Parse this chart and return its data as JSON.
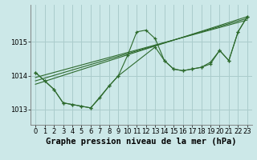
{
  "background_color": "#cce8e8",
  "grid_color": "#aacccc",
  "line_color": "#2d6a2d",
  "title": "Graphe pression niveau de la mer (hPa)",
  "xlim": [
    -0.5,
    23.5
  ],
  "ylim": [
    1012.55,
    1016.1
  ],
  "yticks": [
    1013,
    1014,
    1015
  ],
  "xticks": [
    0,
    1,
    2,
    3,
    4,
    5,
    6,
    7,
    8,
    9,
    10,
    11,
    12,
    13,
    14,
    15,
    16,
    17,
    18,
    19,
    20,
    21,
    22,
    23
  ],
  "series1_x": [
    0,
    1,
    2,
    3,
    4,
    5,
    6,
    7,
    8,
    9,
    10,
    11,
    12,
    13,
    14,
    15,
    16,
    17,
    18,
    19,
    20,
    21,
    22,
    23
  ],
  "series1_y": [
    1014.1,
    1013.85,
    1013.6,
    1013.2,
    1013.15,
    1013.1,
    1013.05,
    1013.35,
    1013.7,
    1014.0,
    1014.6,
    1015.3,
    1015.35,
    1015.1,
    1014.45,
    1014.2,
    1014.15,
    1014.2,
    1014.25,
    1014.4,
    1014.75,
    1014.45,
    1015.3,
    1015.75
  ],
  "series2_x": [
    0,
    1,
    2,
    3,
    4,
    5,
    6,
    8,
    9,
    13,
    14,
    15,
    16,
    17,
    18,
    19,
    20,
    21,
    22,
    23
  ],
  "series2_y": [
    1014.1,
    1013.85,
    1013.6,
    1013.2,
    1013.15,
    1013.1,
    1013.05,
    1013.7,
    1014.0,
    1014.85,
    1014.45,
    1014.2,
    1014.15,
    1014.2,
    1014.25,
    1014.35,
    1014.75,
    1014.45,
    1015.3,
    1015.75
  ],
  "line1_x": [
    0,
    23
  ],
  "line1_y": [
    1013.75,
    1015.75
  ],
  "line2_x": [
    0,
    23
  ],
  "line2_y": [
    1013.85,
    1015.7
  ],
  "line3_x": [
    0,
    23
  ],
  "line3_y": [
    1013.95,
    1015.65
  ],
  "title_fontsize": 7.5,
  "tick_fontsize": 6
}
